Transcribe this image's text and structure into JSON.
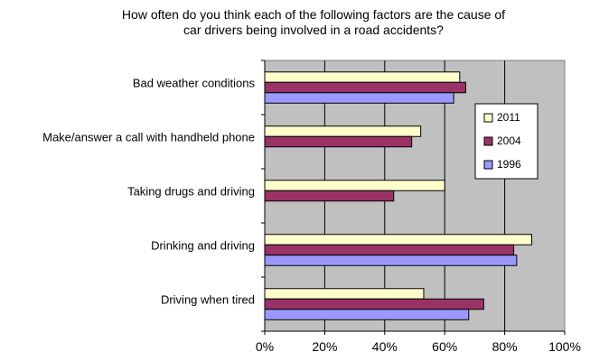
{
  "chart_data": {
    "type": "bar",
    "orientation": "horizontal",
    "title_lines": [
      "How often do you think each of the following factors are the cause of",
      "car drivers being involved in a road accidents?"
    ],
    "categories": [
      "Bad weather conditions",
      "Make/answer a call with handheld phone",
      "Taking drugs and driving",
      "Drinking and driving",
      "Driving when tired"
    ],
    "series": [
      {
        "name": "2011",
        "color": "#ffffcc",
        "values": [
          65,
          52,
          60,
          89,
          53
        ]
      },
      {
        "name": "2004",
        "color": "#993366",
        "values": [
          67,
          49,
          43,
          83,
          73
        ]
      },
      {
        "name": "1996",
        "color": "#9999ff",
        "values": [
          63,
          null,
          null,
          84,
          68
        ]
      }
    ],
    "xlim": [
      0,
      100
    ],
    "xticks": [
      "0%",
      "20%",
      "40%",
      "60%",
      "80%",
      "100%"
    ],
    "plot_background": "#c0c0c0",
    "grid": true,
    "legend_position": "right"
  }
}
